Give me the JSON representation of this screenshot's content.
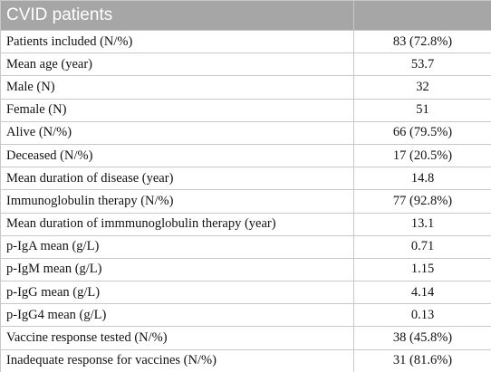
{
  "table": {
    "header": {
      "title": "CVID patients"
    },
    "rows": [
      [
        "Patients included (N/%)",
        "83 (72.8%)"
      ],
      [
        "Mean age (year)",
        "53.7"
      ],
      [
        "Male (N)",
        "32"
      ],
      [
        "Female (N)",
        "51"
      ],
      [
        "Alive (N/%)",
        "66 (79.5%)"
      ],
      [
        "Deceased (N/%)",
        "17 (20.5%)"
      ],
      [
        "Mean duration of disease (year)",
        "14.8"
      ],
      [
        "Immunoglobulin therapy (N/%)",
        "77 (92.8%)"
      ],
      [
        "Mean duration of immmunoglobulin therapy (year)",
        "13.1"
      ],
      [
        "p-IgA mean (g/L)",
        "0.71"
      ],
      [
        "p-IgM mean (g/L)",
        "1.15"
      ],
      [
        "p-IgG mean (g/L)",
        "4.14"
      ],
      [
        "p-IgG4 mean (g/L)",
        "0.13"
      ],
      [
        "Vaccine response tested (N/%)",
        "38 (45.8%)"
      ],
      [
        "Inadequate response for vaccines (N/%)",
        "31 (81.6%)"
      ]
    ]
  }
}
